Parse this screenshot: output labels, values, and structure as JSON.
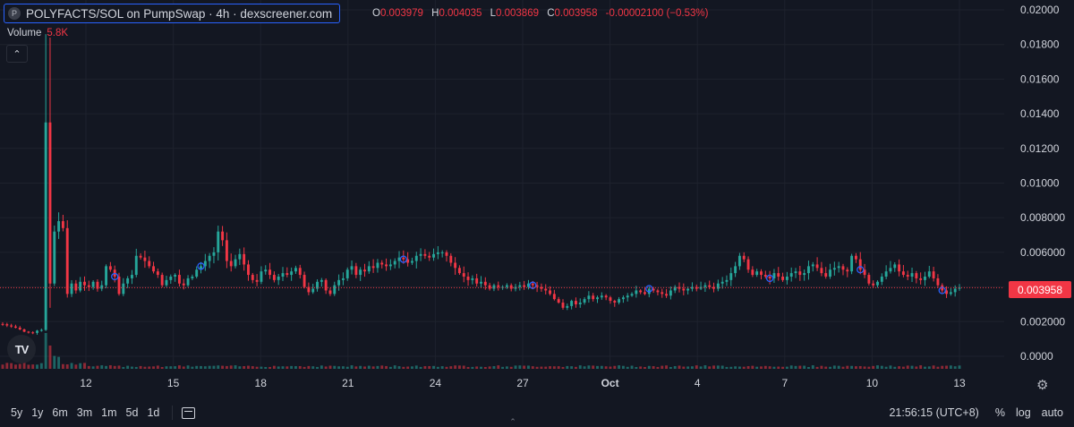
{
  "header": {
    "symbol_icon": "P",
    "title": "POLYFACTS/SOL on PumpSwap · 4h · dexscreener.com",
    "ohlc": {
      "o_label": "O",
      "o": "0.003979",
      "h_label": "H",
      "h": "0.004035",
      "l_label": "L",
      "l": "0.003869",
      "c_label": "C",
      "c": "0.003958",
      "change": "-0.00002100 (−0.53%)"
    },
    "volume_label": "Volume",
    "volume_value": "5.8K",
    "collapse_icon": "chevron-up-icon"
  },
  "price_tag": "0.003958",
  "logo_text": "TV",
  "colors": {
    "up": "#26a69a",
    "down": "#f23645",
    "background": "#131722",
    "grid": "#1e222d",
    "axis_text": "#d1d4dc",
    "marker": "#2962ff"
  },
  "bottombar": {
    "ranges": [
      "5y",
      "1y",
      "6m",
      "3m",
      "1m",
      "5d",
      "1d"
    ],
    "calendar_icon": "calendar-icon",
    "clock": "21:56:15 (UTC+8)",
    "percent": "%",
    "log": "log",
    "auto": "auto"
  },
  "chart_data": {
    "type": "candlestick",
    "timeframe": "4h",
    "y_axis": {
      "ticks": [
        "0.02000",
        "0.01800",
        "0.01600",
        "0.01400",
        "0.01200",
        "0.01000",
        "0.008000",
        "0.006000",
        "0.004000",
        "0.002000",
        "0.0000"
      ],
      "min": 0,
      "max": 0.02
    },
    "x_axis": {
      "ticks": [
        "12",
        "15",
        "18",
        "21",
        "24",
        "27",
        "Oct",
        "4",
        "7",
        "10",
        "13"
      ]
    },
    "last_price": 0.003958,
    "closes": [
      0.00185,
      0.00178,
      0.00172,
      0.00165,
      0.00155,
      0.00142,
      0.00138,
      0.00135,
      0.00148,
      0.00152,
      0.0135,
      0.0042,
      0.0072,
      0.0078,
      0.0074,
      0.0036,
      0.0042,
      0.0038,
      0.0043,
      0.0041,
      0.004,
      0.0043,
      0.0039,
      0.0041,
      0.0052,
      0.005,
      0.0046,
      0.0036,
      0.0042,
      0.0045,
      0.0047,
      0.0058,
      0.0057,
      0.0055,
      0.0052,
      0.0049,
      0.0047,
      0.0041,
      0.0044,
      0.0046,
      0.0047,
      0.0042,
      0.0041,
      0.0045,
      0.0046,
      0.005,
      0.0052,
      0.0055,
      0.0058,
      0.006,
      0.0072,
      0.0067,
      0.0055,
      0.0052,
      0.0056,
      0.0059,
      0.0053,
      0.0047,
      0.0044,
      0.0043,
      0.0049,
      0.005,
      0.0047,
      0.0044,
      0.0046,
      0.0048,
      0.0047,
      0.0049,
      0.0051,
      0.0047,
      0.004,
      0.0037,
      0.0039,
      0.0043,
      0.0044,
      0.0038,
      0.0036,
      0.0041,
      0.0044,
      0.0045,
      0.005,
      0.0052,
      0.0047,
      0.005,
      0.0049,
      0.0052,
      0.0051,
      0.0054,
      0.0053,
      0.0052,
      0.0053,
      0.0055,
      0.0057,
      0.0056,
      0.0054,
      0.0055,
      0.0058,
      0.0059,
      0.0058,
      0.0057,
      0.0059,
      0.006,
      0.006,
      0.0058,
      0.0054,
      0.0051,
      0.0048,
      0.0046,
      0.0044,
      0.0045,
      0.0042,
      0.0043,
      0.0041,
      0.0039,
      0.0041,
      0.004,
      0.004,
      0.0041,
      0.0039,
      0.004,
      0.0041,
      0.004,
      0.0042,
      0.0041,
      0.004,
      0.0039,
      0.0038,
      0.0036,
      0.0033,
      0.0031,
      0.0028,
      0.0029,
      0.0032,
      0.003,
      0.0031,
      0.0033,
      0.0035,
      0.0033,
      0.0034,
      0.0035,
      0.0034,
      0.0032,
      0.0031,
      0.0033,
      0.0034,
      0.0035,
      0.0036,
      0.0038,
      0.0037,
      0.0036,
      0.0039,
      0.0038,
      0.0037,
      0.0036,
      0.0035,
      0.0038,
      0.004,
      0.0039,
      0.0038,
      0.0039,
      0.004,
      0.0039,
      0.004,
      0.0041,
      0.004,
      0.0039,
      0.0042,
      0.0043,
      0.0044,
      0.0048,
      0.0052,
      0.0058,
      0.0056,
      0.005,
      0.0047,
      0.0049,
      0.0047,
      0.0046,
      0.0045,
      0.0048,
      0.0046,
      0.0044,
      0.0046,
      0.0048,
      0.0049,
      0.0047,
      0.0048,
      0.0052,
      0.0053,
      0.0051,
      0.0048,
      0.0046,
      0.005,
      0.0051,
      0.0052,
      0.005,
      0.0049,
      0.0058,
      0.0056,
      0.005,
      0.0047,
      0.0042,
      0.0041,
      0.0043,
      0.0046,
      0.0049,
      0.0051,
      0.0053,
      0.0049,
      0.0047,
      0.0046,
      0.0048,
      0.0045,
      0.0044,
      0.0046,
      0.0049,
      0.0045,
      0.0041,
      0.0038,
      0.0036,
      0.0037,
      0.0039,
      0.00396
    ],
    "volume_peak": 5800
  }
}
